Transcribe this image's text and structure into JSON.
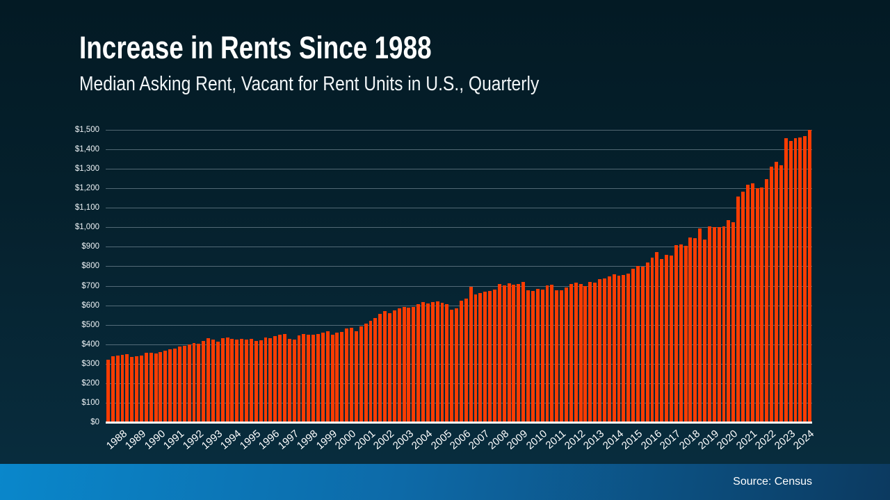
{
  "header": {
    "title": "Increase in Rents Since 1988",
    "subtitle": "Median Asking Rent, Vacant for Rent Units in U.S., Quarterly"
  },
  "footer": {
    "source": "Source: Census"
  },
  "colors": {
    "background_top": "#031a24",
    "background_bottom": "#082c3d",
    "bar": "#fb3c02",
    "gridline": "rgba(190,206,216,0.42)",
    "baseline": "#ffffff",
    "text": "#ffffff",
    "band_left": "#0a87cb",
    "band_right": "#0c3a60"
  },
  "chart_data": {
    "type": "bar",
    "title": "Increase in Rents Since 1988",
    "subtitle": "Median Asking Rent, Vacant for Rent Units in U.S., Quarterly",
    "frequency": "quarterly",
    "categories": [
      1988,
      1989,
      1990,
      1991,
      1992,
      1993,
      1994,
      1995,
      1996,
      1997,
      1998,
      1999,
      2000,
      2001,
      2002,
      2003,
      2004,
      2005,
      2006,
      2007,
      2008,
      2009,
      2010,
      2011,
      2012,
      2013,
      2014,
      2015,
      2016,
      2017,
      2018,
      2019,
      2020,
      2021,
      2022,
      2023,
      2024
    ],
    "points_per_category": 4,
    "values": [
      322,
      337,
      343,
      346,
      349,
      334,
      338,
      341,
      355,
      357,
      353,
      361,
      367,
      373,
      379,
      387,
      393,
      400,
      406,
      403,
      417,
      430,
      423,
      412,
      430,
      436,
      426,
      423,
      426,
      423,
      429,
      417,
      420,
      436,
      432,
      442,
      450,
      454,
      426,
      423,
      444,
      452,
      448,
      450,
      452,
      459,
      466,
      450,
      459,
      464,
      482,
      486,
      468,
      492,
      507,
      521,
      535,
      557,
      569,
      560,
      572,
      584,
      592,
      588,
      592,
      606,
      616,
      610,
      616,
      620,
      612,
      607,
      578,
      584,
      625,
      634,
      694,
      654,
      664,
      670,
      673,
      682,
      709,
      703,
      711,
      705,
      709,
      720,
      676,
      672,
      684,
      679,
      703,
      705,
      678,
      676,
      693,
      708,
      717,
      709,
      700,
      720,
      715,
      735,
      738,
      747,
      760,
      753,
      755,
      761,
      786,
      800,
      798,
      820,
      845,
      872,
      838,
      860,
      856,
      907,
      911,
      905,
      949,
      946,
      994,
      937,
      1006,
      1002,
      1000,
      1006,
      1038,
      1026,
      1157,
      1184,
      1218,
      1224,
      1202,
      1204,
      1248,
      1311,
      1335,
      1317,
      1459,
      1444,
      1456,
      1462,
      1469,
      1500
    ],
    "xlabel": "",
    "ylabel": "",
    "ylim": [
      0,
      1500
    ],
    "ytick_step": 100,
    "ytick_prefix": "$",
    "grid": true,
    "legend": false,
    "bar_color": "#fb3c02"
  }
}
